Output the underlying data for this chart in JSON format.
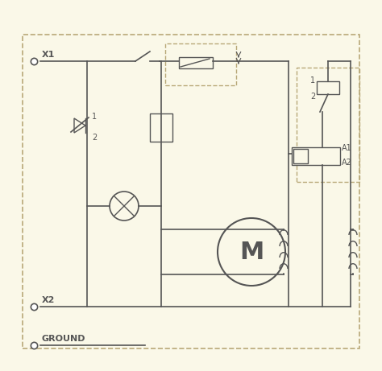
{
  "bg_color": "#faf8e8",
  "border_color": "#c8c090",
  "line_color": "#555555",
  "dashed_color": "#b8a878",
  "x1_label": "X1",
  "x2_label": "X2",
  "ground_label": "GROUND",
  "motor_label": "M",
  "a1_label": "A1",
  "a2_label": "A2",
  "figsize": [
    4.74,
    4.61
  ],
  "dpi": 100
}
